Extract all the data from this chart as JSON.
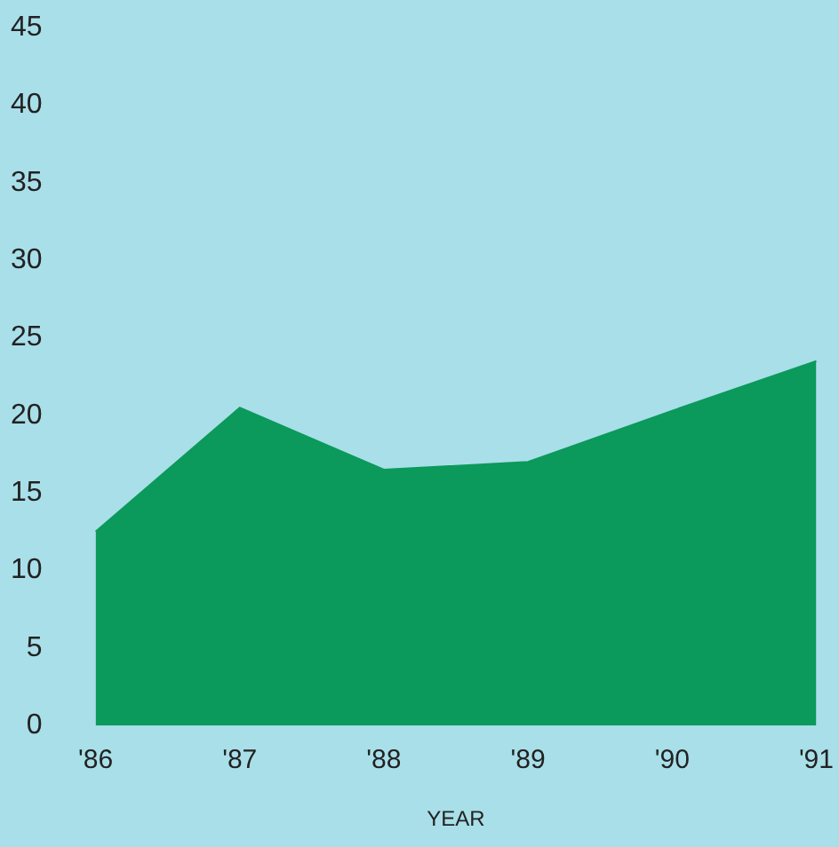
{
  "chart_data": {
    "type": "area",
    "xlabel": "YEAR",
    "categories": [
      "'86",
      "'87",
      "'88",
      "'89",
      "'90",
      "'91"
    ],
    "series": [
      {
        "color": "#0b9a5c",
        "values": [
          12.5,
          20.5,
          16.5,
          17,
          20.3,
          23.5
        ]
      }
    ],
    "ylim": [
      0,
      45
    ],
    "yticks": [
      0,
      5,
      10,
      15,
      20,
      25,
      30,
      35,
      40,
      45
    ],
    "grid": false,
    "legend": false
  }
}
